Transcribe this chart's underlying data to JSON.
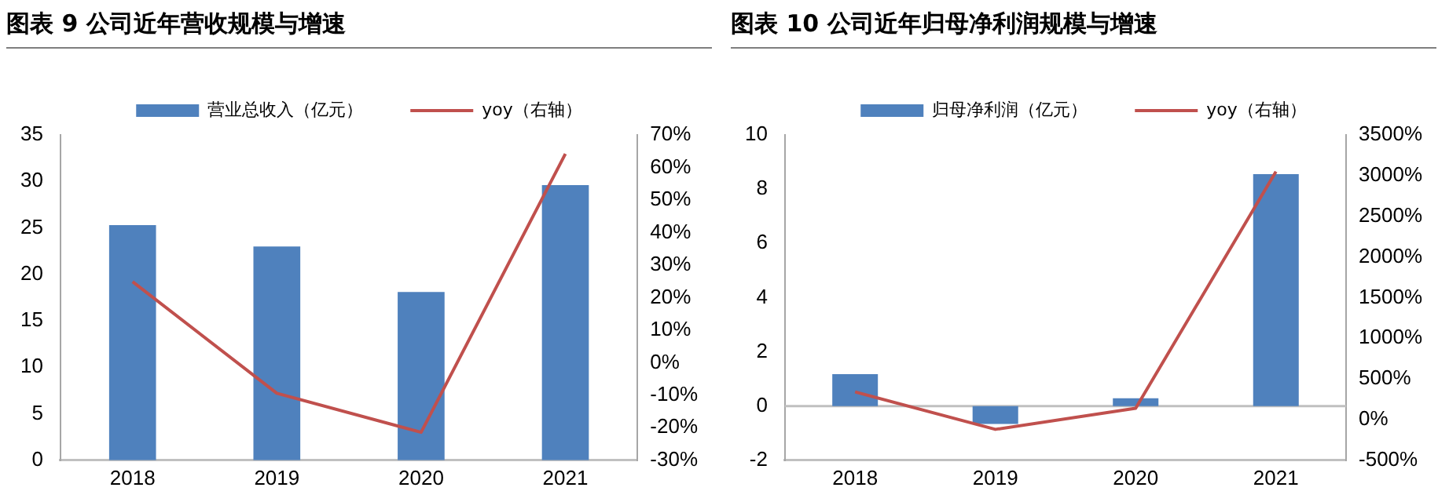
{
  "chart_data": [
    {
      "type": "bar",
      "title": "图表 9 公司近年营收规模与增速",
      "categories": [
        "2018",
        "2019",
        "2020",
        "2021"
      ],
      "series": [
        {
          "name": "营业总收入（亿元）",
          "color": "#4f81bd",
          "values": [
            25.3,
            23.0,
            18.1,
            29.6
          ]
        },
        {
          "name": "yoy（右轴）",
          "type": "line",
          "axis": "y2",
          "color": "#c0504d",
          "values": [
            24.9,
            -9.4,
            -21.4,
            64.2
          ]
        }
      ],
      "ylim": [
        0,
        35
      ],
      "yticks": [
        0,
        5,
        10,
        15,
        20,
        25,
        30,
        35
      ],
      "y2lim": [
        -30,
        70
      ],
      "y2ticks": [
        {
          "value": -30,
          "label": "-30%"
        },
        {
          "value": -20,
          "label": "-20%"
        },
        {
          "value": -10,
          "label": "-10%"
        },
        {
          "value": 0,
          "label": "0%"
        },
        {
          "value": 10,
          "label": "10%"
        },
        {
          "value": 20,
          "label": "20%"
        },
        {
          "value": 30,
          "label": "30%"
        },
        {
          "value": 40,
          "label": "40%"
        },
        {
          "value": 50,
          "label": "50%"
        },
        {
          "value": 60,
          "label": "60%"
        },
        {
          "value": 70,
          "label": "70%"
        }
      ],
      "grid": false,
      "legend": "top",
      "marker": "none"
    },
    {
      "type": "bar",
      "title": "图表 10 公司近年归母净利润规模与增速",
      "categories": [
        "2018",
        "2019",
        "2020",
        "2021"
      ],
      "series": [
        {
          "name": "归母净利润（亿元）",
          "color": "#4f81bd",
          "values": [
            1.18,
            -0.66,
            0.29,
            8.55
          ]
        },
        {
          "name": "yoy（右轴）",
          "type": "line",
          "axis": "y2",
          "color": "#c0504d",
          "values": [
            340,
            -120,
            140,
            3050
          ]
        }
      ],
      "ylim": [
        -2,
        10
      ],
      "yticks": [
        -2,
        0,
        2,
        4,
        6,
        8,
        10
      ],
      "y2lim": [
        -500,
        3500
      ],
      "y2ticks": [
        {
          "value": -500,
          "label": "-500%"
        },
        {
          "value": 0,
          "label": "0%"
        },
        {
          "value": 500,
          "label": "500%"
        },
        {
          "value": 1000,
          "label": "1000%"
        },
        {
          "value": 1500,
          "label": "1500%"
        },
        {
          "value": 2000,
          "label": "2000%"
        },
        {
          "value": 2500,
          "label": "2500%"
        },
        {
          "value": 3000,
          "label": "3000%"
        },
        {
          "value": 3500,
          "label": "3500%"
        }
      ],
      "ref_lines": [
        {
          "axis": "y",
          "value": 0,
          "color": "#c0c0c0"
        }
      ],
      "grid": false,
      "legend": "top",
      "marker": "none"
    }
  ]
}
